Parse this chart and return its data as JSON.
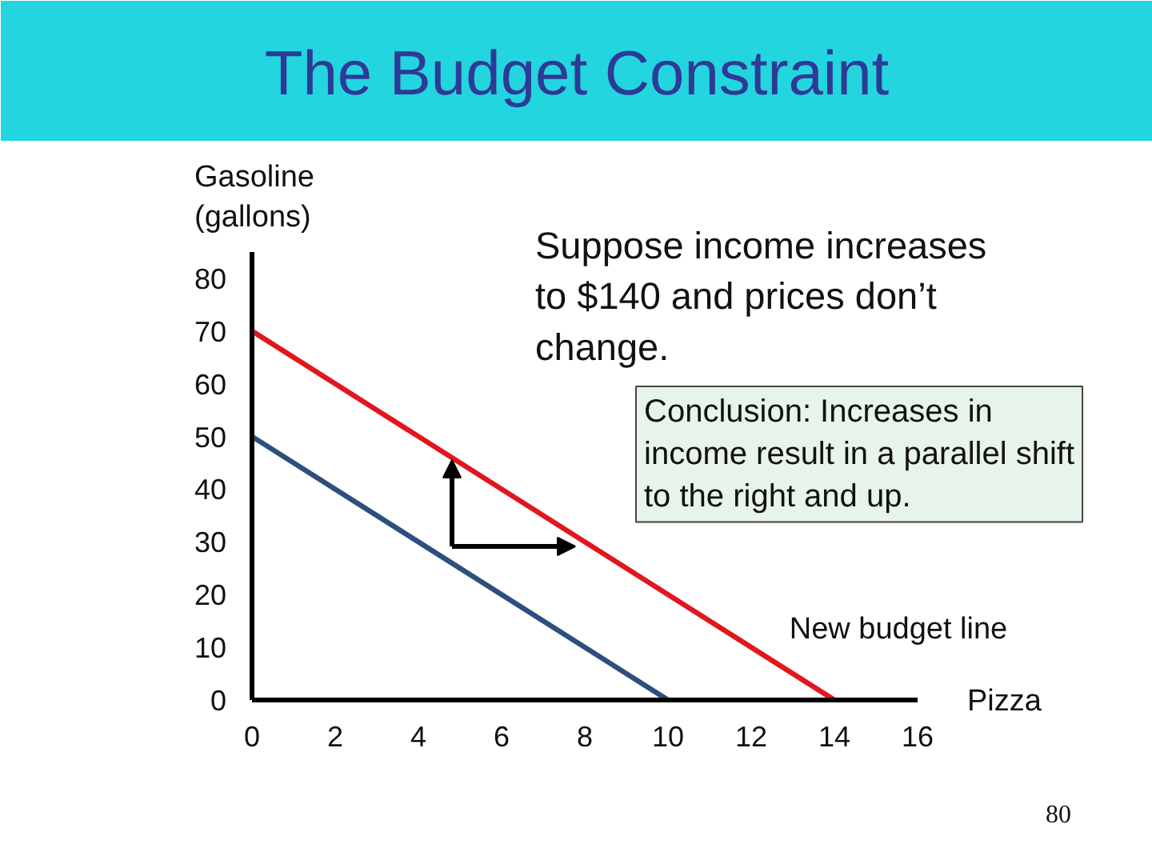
{
  "chart_data": {
    "type": "line",
    "title": "The Budget Constraint",
    "xlabel": "Pizza",
    "ylabel": "Gasoline\n(gallons)",
    "series": [
      {
        "name": "New budget line",
        "color": "#e2161f",
        "x": [
          0,
          14
        ],
        "values": [
          70,
          0
        ]
      },
      {
        "color": "#2c4f7e",
        "x": [
          0,
          10
        ],
        "values": [
          50,
          0
        ]
      }
    ],
    "xlim": [
      0,
      16
    ],
    "ylim": [
      0,
      85
    ],
    "xticks": [
      0,
      2,
      4,
      6,
      8,
      10,
      12,
      14,
      16
    ],
    "yticks": [
      0,
      10,
      20,
      30,
      40,
      50,
      60,
      70,
      80
    ],
    "grid": false,
    "legend": false,
    "annotations": [
      "Suppose income increases\nto $140 and prices don’t\nchange.",
      "Conclusion: Increases in\nincome result in a parallel shift\nto the right and up.",
      "80"
    ]
  }
}
